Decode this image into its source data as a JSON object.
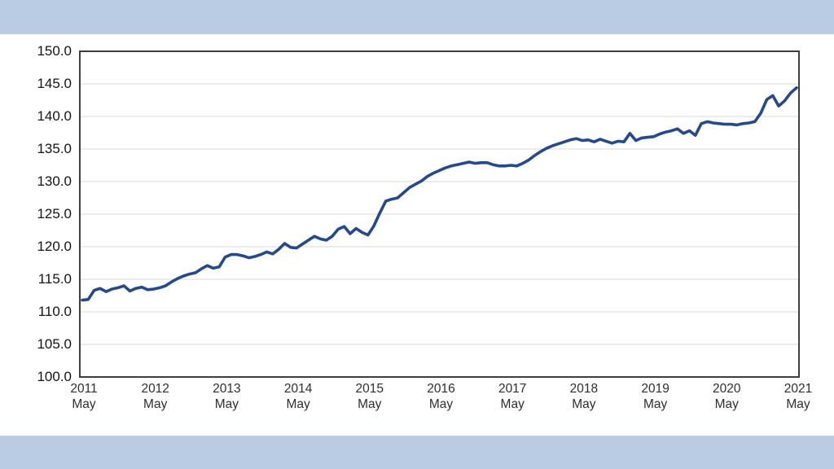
{
  "page": {
    "band_color": "#b9cce3",
    "plot_background": "#ffffff",
    "border_color": "#3f3f3f",
    "gridline_color": "#d9d9d9"
  },
  "chart_data": {
    "type": "line",
    "title": "",
    "xlabel": "",
    "ylabel": "",
    "frequency": "monthly",
    "x_start": "2011 May",
    "x_end": "2021 May",
    "ylim": [
      100,
      150
    ],
    "grid": true,
    "legend": "none",
    "line_color": "#25498a",
    "y_tick_labels": [
      "100.0",
      "105.0",
      "110.0",
      "115.0",
      "120.0",
      "125.0",
      "130.0",
      "135.0",
      "140.0",
      "145.0",
      "150.0"
    ],
    "x_tick_labels": [
      {
        "year": "2011",
        "month": "May"
      },
      {
        "year": "2012",
        "month": "May"
      },
      {
        "year": "2013",
        "month": "May"
      },
      {
        "year": "2014",
        "month": "May"
      },
      {
        "year": "2015",
        "month": "May"
      },
      {
        "year": "2016",
        "month": "May"
      },
      {
        "year": "2017",
        "month": "May"
      },
      {
        "year": "2018",
        "month": "May"
      },
      {
        "year": "2019",
        "month": "May"
      },
      {
        "year": "2020",
        "month": "May"
      },
      {
        "year": "2021",
        "month": "May"
      }
    ],
    "values": [
      111.8,
      111.9,
      113.3,
      113.6,
      113.1,
      113.5,
      113.7,
      114.0,
      113.2,
      113.6,
      113.8,
      113.4,
      113.5,
      113.7,
      114.0,
      114.6,
      115.1,
      115.5,
      115.8,
      116.0,
      116.6,
      117.1,
      116.7,
      116.9,
      118.4,
      118.8,
      118.8,
      118.6,
      118.3,
      118.5,
      118.8,
      119.2,
      118.9,
      119.6,
      120.5,
      119.9,
      119.8,
      120.4,
      121.0,
      121.6,
      121.2,
      121.0,
      121.6,
      122.7,
      123.1,
      122.0,
      122.8,
      122.2,
      121.8,
      123.2,
      125.2,
      127.0,
      127.3,
      127.5,
      128.3,
      129.1,
      129.6,
      130.1,
      130.8,
      131.3,
      131.7,
      132.1,
      132.4,
      132.6,
      132.8,
      133.0,
      132.8,
      132.9,
      132.9,
      132.6,
      132.4,
      132.4,
      132.5,
      132.4,
      132.8,
      133.3,
      134.0,
      134.6,
      135.1,
      135.5,
      135.8,
      136.1,
      136.4,
      136.6,
      136.3,
      136.4,
      136.1,
      136.5,
      136.2,
      135.9,
      136.2,
      136.1,
      137.4,
      136.3,
      136.7,
      136.8,
      136.9,
      137.3,
      137.6,
      137.8,
      138.1,
      137.4,
      137.8,
      137.1,
      138.9,
      139.2,
      139.0,
      138.9,
      138.8,
      138.8,
      138.7,
      138.9,
      139.0,
      139.2,
      140.5,
      142.6,
      143.2,
      141.6,
      142.4,
      143.6,
      144.4
    ]
  }
}
